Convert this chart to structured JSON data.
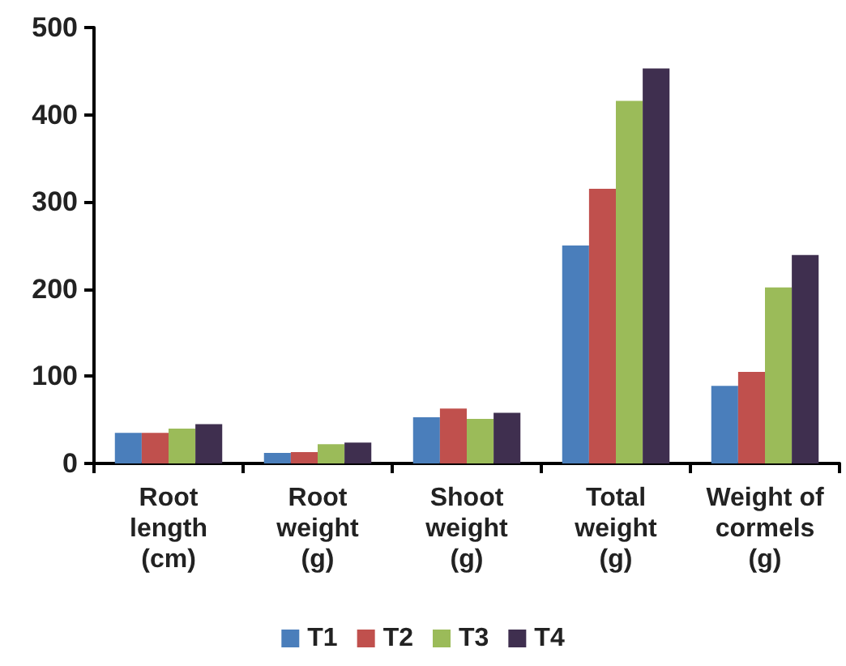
{
  "chart_data": {
    "type": "bar",
    "categories": [
      "Root\nlength\n(cm)",
      "Root\nweight\n(g)",
      "Shoot\nweight\n(g)",
      "Total\nweight\n(g)",
      "Weight of\ncormels\n(g)"
    ],
    "series": [
      {
        "name": "T1",
        "color": "#4a7ebb",
        "values": [
          35,
          12,
          53,
          250,
          89
        ]
      },
      {
        "name": "T2",
        "color": "#c0504d",
        "values": [
          35,
          13,
          63,
          315,
          105
        ]
      },
      {
        "name": "T3",
        "color": "#9bbb59",
        "values": [
          40,
          22,
          51,
          416,
          202
        ]
      },
      {
        "name": "T4",
        "color": "#3f2f4f",
        "values": [
          45,
          24,
          58,
          453,
          239
        ]
      }
    ],
    "ylim": [
      0,
      500
    ],
    "yticks": [
      0,
      100,
      200,
      300,
      400,
      500
    ],
    "grid": false,
    "legend": "bottom"
  }
}
